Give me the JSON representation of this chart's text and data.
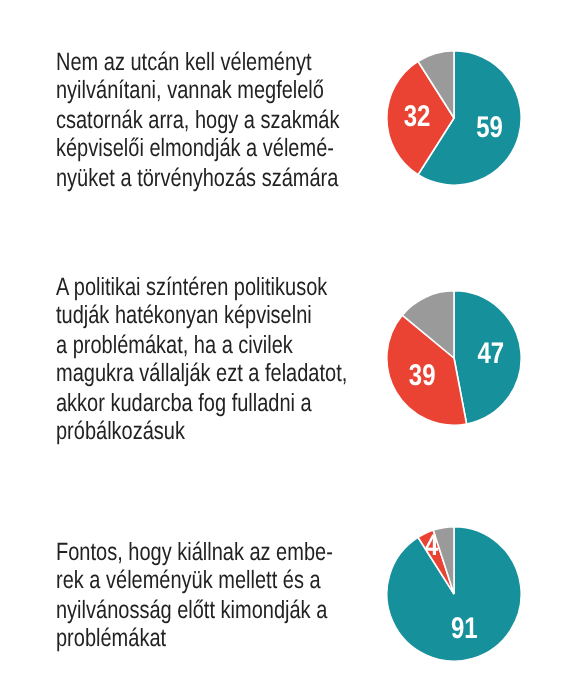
{
  "chart_data": [
    {
      "type": "pie",
      "title": "Nem az utcán kell véleményt\nnyilvánítani, vannak megfelelő\ncsatornák arra, hogy a szakmák\nképviselői elmondják a vélemé-\nnyüket a törvényhozás számára",
      "categories": [
        null,
        null,
        null
      ],
      "values": [
        59,
        32,
        9
      ],
      "colors": [
        "#16909b",
        "#ea4233",
        "#9a9a9a"
      ],
      "value_labels": [
        "59",
        "32",
        null
      ]
    },
    {
      "type": "pie",
      "title": "A politikai színtéren politikusok\ntudják hatékonyan képviselni\na problémákat, ha a civilek\nmagukra vállalják ezt a feladatot,\nakkor kudarcba fog fulladni a\npróbálkozásuk",
      "categories": [
        null,
        null,
        null
      ],
      "values": [
        47,
        39,
        14
      ],
      "colors": [
        "#16909b",
        "#ea4233",
        "#9a9a9a"
      ],
      "value_labels": [
        "47",
        "39",
        null
      ]
    },
    {
      "type": "pie",
      "title": "Fontos, hogy kiállnak az embe-\nrek a véleményük mellett és a\nnyilvánosság előtt kimondják a\nproblémákat",
      "categories": [
        null,
        null,
        null
      ],
      "values": [
        91,
        4,
        5
      ],
      "colors": [
        "#16909b",
        "#ea4233",
        "#9a9a9a"
      ],
      "value_labels": [
        "91",
        "4",
        null
      ]
    }
  ]
}
